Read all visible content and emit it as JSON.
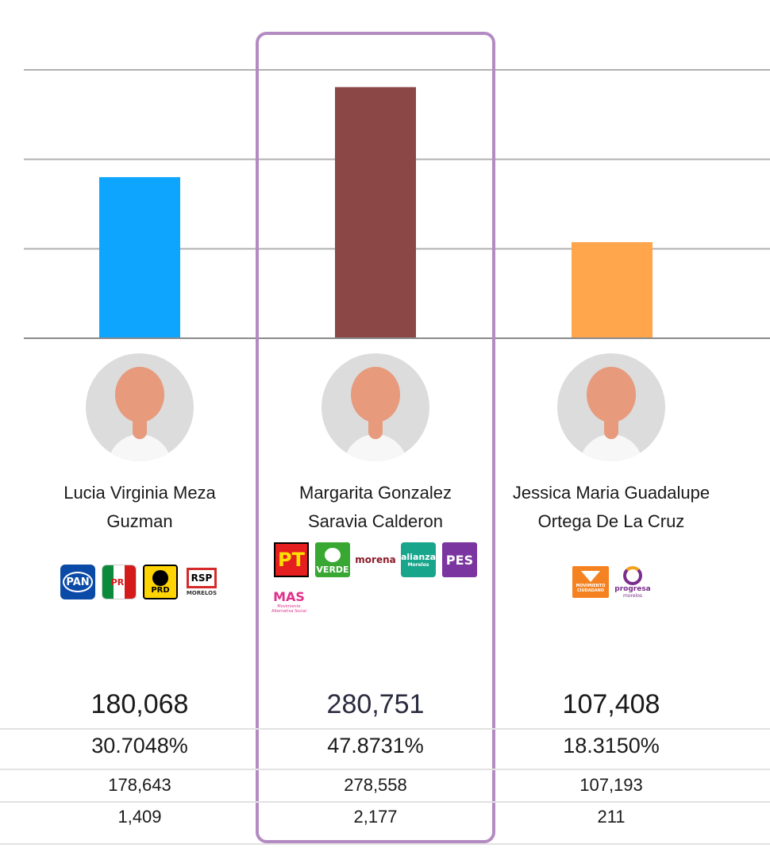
{
  "chart_data": {
    "type": "bar",
    "categories": [
      "Lucia Virginia Meza Guzman",
      "Margarita Gonzalez Saravia Calderon",
      "Jessica Maria Guadalupe Ortega De La Cruz"
    ],
    "values": [
      180068,
      280751,
      107408
    ],
    "colors": [
      "#0ea5ff",
      "#8b4646",
      "#ffa64d"
    ],
    "ylim": [
      0,
      300000
    ],
    "gridlines": [
      100000,
      200000,
      300000
    ],
    "grid": true,
    "highlighted_index": 1
  },
  "candidates": [
    {
      "name": "Lucia Virginia Meza\nGuzman",
      "parties": [
        "PAN",
        "PRI",
        "PRD",
        "RSP"
      ],
      "votes": "180,068",
      "percent": "30.7048%",
      "row3": "178,643",
      "row4": "1,409"
    },
    {
      "name": "Margarita Gonzalez\nSaravia Calderon",
      "parties": [
        "PT",
        "VERDE",
        "morena",
        "alianza",
        "PES",
        "MAS"
      ],
      "votes": "280,751",
      "percent": "47.8731%",
      "row3": "278,558",
      "row4": "2,177"
    },
    {
      "name": "Jessica Maria Guadalupe\nOrtega De La Cruz",
      "parties": [
        "MOVIMIENTO CIUDADANO",
        "progresa"
      ],
      "votes": "107,408",
      "percent": "18.3150%",
      "row3": "107,193",
      "row4": "211"
    }
  ],
  "logo_text": {
    "rsp_sub": "MORELOS",
    "alianza_sub": "Morelos",
    "mas_sub": "Movimiento Alternativa Social",
    "mc_sub": "CIUDADANO",
    "progresa_sub": "morelos"
  },
  "colors": {
    "highlight": "#b38bc2",
    "grid": "#b0b0b0"
  }
}
